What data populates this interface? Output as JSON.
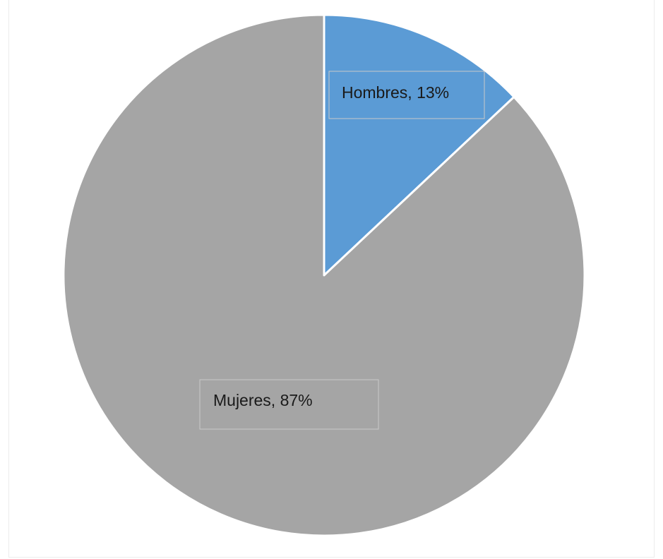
{
  "chart_data": {
    "type": "pie",
    "title": "",
    "slices": [
      {
        "label": "Hombres",
        "value": 13,
        "display": "Hombres, 13%",
        "color": "#5b9bd5"
      },
      {
        "label": "Mujeres",
        "value": 87,
        "display": "Mujeres, 87%",
        "color": "#a5a5a5"
      }
    ],
    "start_angle": "12 o'clock",
    "direction": "clockwise",
    "legend": "none",
    "slice_border_color": "#ffffff"
  }
}
